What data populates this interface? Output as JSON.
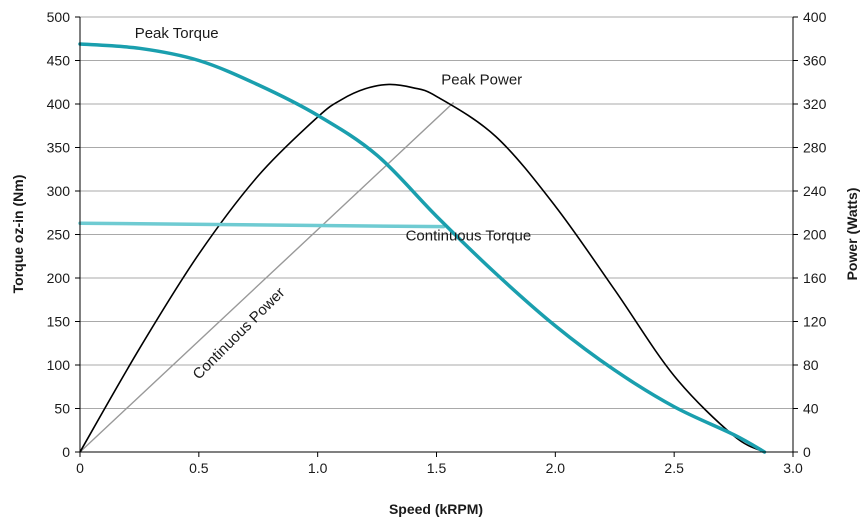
{
  "chart_data": {
    "type": "line",
    "title": "",
    "xlabel": "Speed (kRPM)",
    "ylabel_left": "Torque oz-in (Nm)",
    "ylabel_right": "Power (Watts)",
    "xlim": [
      0,
      3.0
    ],
    "ylim_left": [
      0,
      500
    ],
    "ylim_right": [
      0,
      400
    ],
    "x_ticks": [
      "0",
      "0.5",
      "1.0",
      "1.5",
      "2.0",
      "2.5",
      "3.0"
    ],
    "x_tick_values": [
      0,
      0.5,
      1.0,
      1.5,
      2.0,
      2.5,
      3.0
    ],
    "y_left_ticks": [
      0,
      50,
      100,
      150,
      200,
      250,
      300,
      350,
      400,
      450,
      500
    ],
    "y_right_ticks": [
      0,
      40,
      80,
      120,
      160,
      200,
      240,
      280,
      320,
      360,
      400
    ],
    "grid": true,
    "series": [
      {
        "name": "Peak Torque",
        "axis": "left",
        "color": "#1a9fae",
        "x": [
          0,
          0.25,
          0.5,
          0.75,
          1.0,
          1.25,
          1.5,
          1.75,
          2.0,
          2.25,
          2.5,
          2.75,
          2.88
        ],
        "y": [
          469,
          464,
          450,
          422,
          387,
          341,
          271,
          205,
          145,
          94,
          52,
          20,
          0
        ]
      },
      {
        "name": "Peak Power",
        "axis": "right",
        "color": "#000000",
        "x": [
          0,
          0.25,
          0.5,
          0.75,
          1.0,
          1.1,
          1.2,
          1.3,
          1.4,
          1.5,
          1.75,
          2.0,
          2.25,
          2.5,
          2.75,
          2.88
        ],
        "y": [
          0,
          95,
          182,
          254,
          308,
          324,
          334,
          338,
          335,
          327,
          290,
          226,
          149,
          70,
          15,
          0
        ]
      },
      {
        "name": "Continuous Torque",
        "axis": "left",
        "color": "#6fcbd2",
        "x": [
          0,
          1.53
        ],
        "y": [
          263,
          259
        ]
      },
      {
        "name": "Continuous Power",
        "axis": "right",
        "color": "#999999",
        "x": [
          0,
          1.57
        ],
        "y": [
          0,
          321
        ]
      }
    ],
    "annotations": [
      {
        "text": "Peak Torque",
        "x": 0.23,
        "y_left": 476,
        "axis": "left",
        "rotate": 0
      },
      {
        "text": "Peak Power",
        "x": 1.52,
        "y_right": 338,
        "axis": "right",
        "rotate": 0
      },
      {
        "text": "Continuous Torque",
        "x": 1.37,
        "y_left": 243,
        "axis": "left",
        "rotate": 0
      },
      {
        "text": "Continuous Power",
        "x": 0.5,
        "y_right": 66,
        "axis": "right",
        "rotate": -45
      }
    ]
  }
}
